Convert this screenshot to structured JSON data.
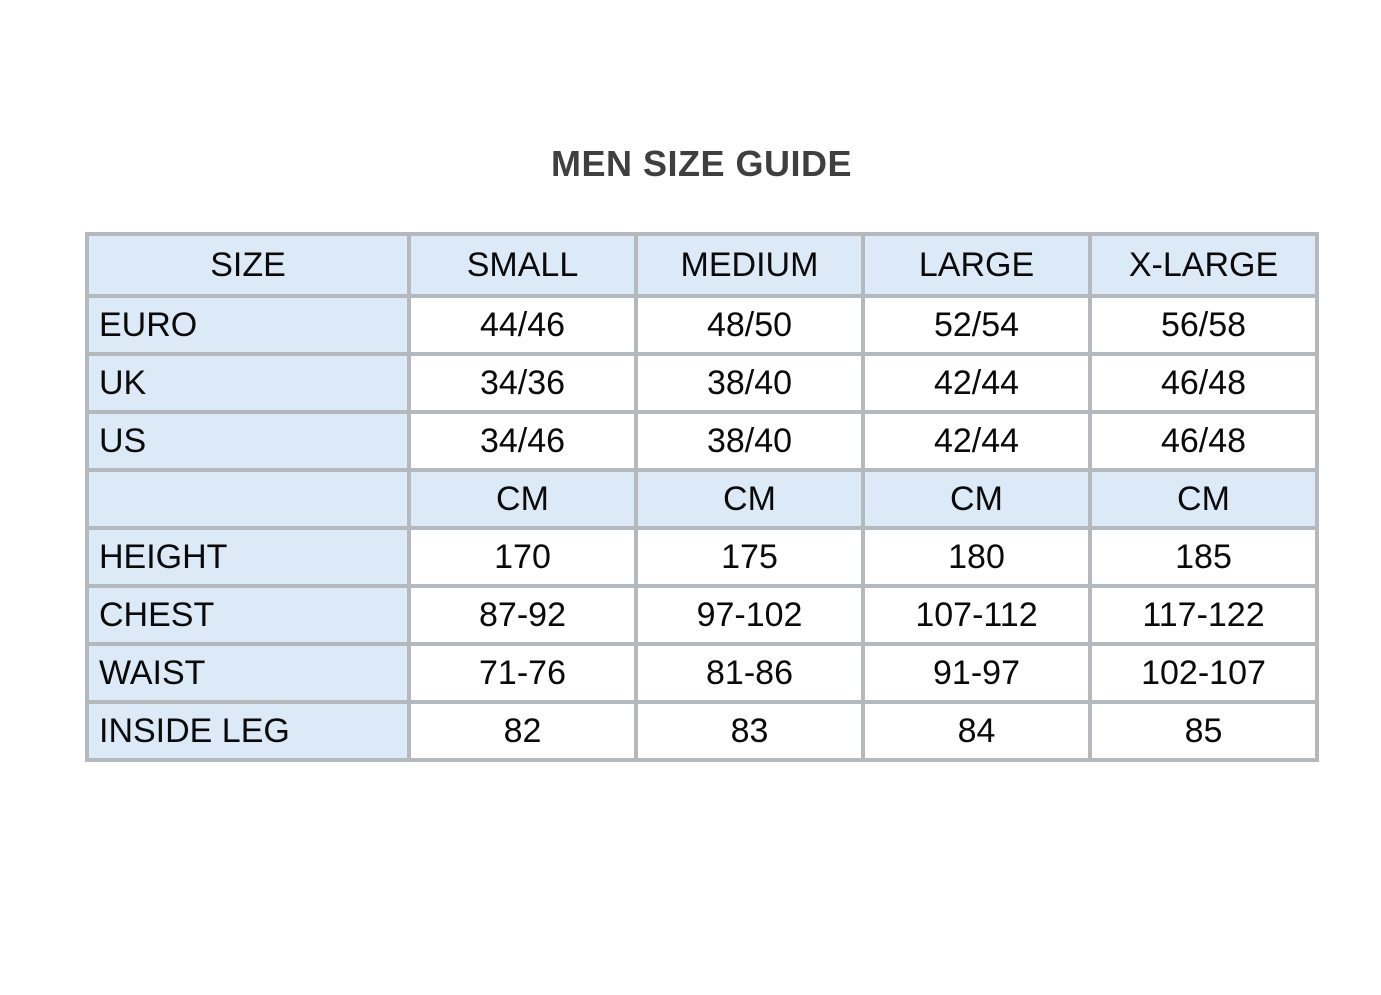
{
  "title": "MEN SIZE GUIDE",
  "size_table": {
    "header": [
      "SIZE",
      "SMALL",
      "MEDIUM",
      "LARGE",
      "X-LARGE"
    ],
    "rows": [
      {
        "label": "EURO",
        "values": [
          "44/46",
          "48/50",
          "52/54",
          "56/58"
        ]
      },
      {
        "label": "UK",
        "values": [
          "34/36",
          "38/40",
          "42/44",
          "46/48"
        ]
      },
      {
        "label": "US",
        "values": [
          "34/46",
          "38/40",
          "42/44",
          "46/48"
        ]
      },
      {
        "label": "",
        "values": [
          "CM",
          "CM",
          "CM",
          "CM"
        ]
      },
      {
        "label": "HEIGHT",
        "values": [
          "170",
          "175",
          "180",
          "185"
        ]
      },
      {
        "label": "CHEST",
        "values": [
          "87-92",
          "97-102",
          "107-112",
          "117-122"
        ]
      },
      {
        "label": "WAIST",
        "values": [
          "71-76",
          "81-86",
          "91-97",
          "102-107"
        ]
      },
      {
        "label": "INSIDE LEG",
        "values": [
          "82",
          "83",
          "84",
          "85"
        ]
      }
    ]
  },
  "colors": {
    "header_fill": "#dce9f6",
    "label_column_fill": "#dce9f6",
    "data_cell_fill": "#ffffff",
    "grid_border": "#b3b9bc",
    "title_text": "#3f3f3f",
    "cell_text": "#0a0a0a",
    "page_background": "#ffffff"
  }
}
